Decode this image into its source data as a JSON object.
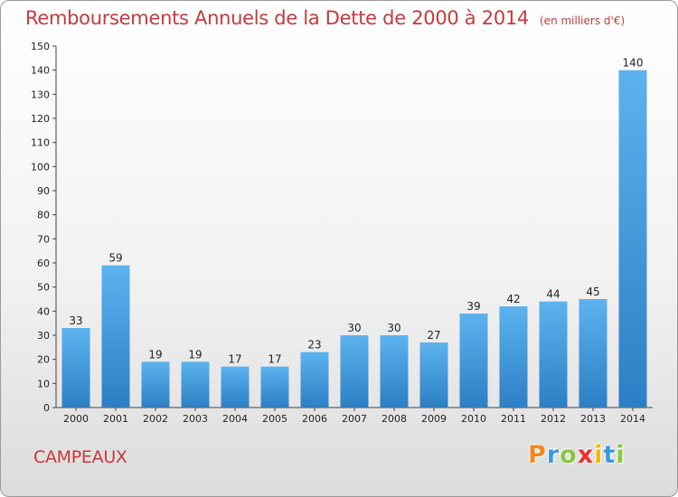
{
  "header": {
    "title": "Remboursements Annuels de la Dette de 2000 à 2014",
    "unit": "(en milliers d'€)"
  },
  "commune": "CAMPEAUX",
  "logo": {
    "text": "Proxiti",
    "letters": [
      {
        "ch": "P",
        "color": "#f08a1c"
      },
      {
        "ch": "r",
        "color": "#3a9ad9"
      },
      {
        "ch": "o",
        "color": "#8cc63f"
      },
      {
        "ch": "x",
        "color": "#e8322f"
      },
      {
        "ch": "i",
        "color": "#f5b800"
      },
      {
        "ch": "t",
        "color": "#3a9ad9"
      },
      {
        "ch": "i",
        "color": "#8cc63f"
      }
    ]
  },
  "chart_data": {
    "type": "bar",
    "categories": [
      "2000",
      "2001",
      "2002",
      "2003",
      "2004",
      "2005",
      "2006",
      "2007",
      "2008",
      "2009",
      "2010",
      "2011",
      "2012",
      "2013",
      "2014"
    ],
    "values": [
      33,
      59,
      19,
      19,
      17,
      17,
      23,
      30,
      30,
      27,
      39,
      42,
      44,
      45,
      140
    ],
    "title": "Remboursements Annuels de la Dette de 2000 à 2014",
    "xlabel": "",
    "ylabel": "",
    "ylim": [
      0,
      150
    ],
    "yticks": [
      0,
      10,
      20,
      30,
      40,
      50,
      60,
      70,
      80,
      90,
      100,
      110,
      120,
      130,
      140,
      150
    ],
    "grid": false,
    "bar_color": "#3d93d8",
    "text_color": "#222222",
    "title_color": "#c63a3a"
  }
}
